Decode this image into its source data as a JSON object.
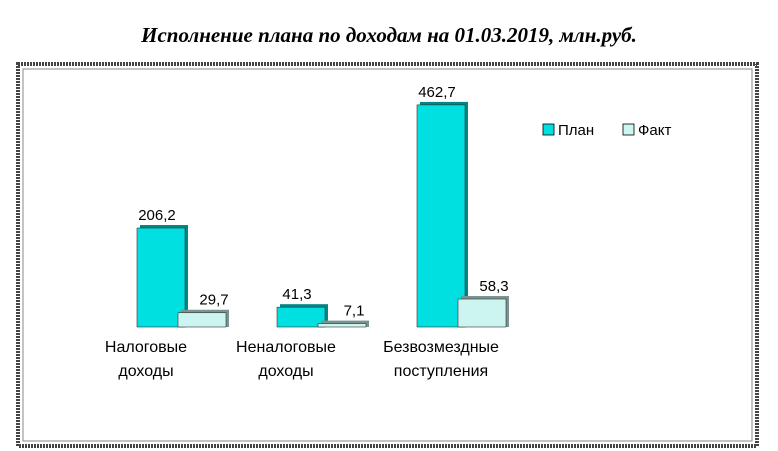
{
  "chart_data": {
    "type": "bar",
    "title": "Исполнение плана по доходам на 01.03.2019, млн.руб.",
    "categories": [
      "Налоговые доходы",
      "Неналоговые доходы",
      "Безвозмездные поступления"
    ],
    "series": [
      {
        "name": "План",
        "color": "#00e0e0",
        "values": [
          206.2,
          41.3,
          462.7
        ],
        "value_labels": [
          "206,2",
          "41,3",
          "462,7"
        ]
      },
      {
        "name": "Факт",
        "color": "#ccf5f2",
        "values": [
          29.7,
          7.1,
          58.3
        ],
        "value_labels": [
          "29,7",
          "7,1",
          "58,3"
        ]
      }
    ],
    "legend": "right"
  }
}
